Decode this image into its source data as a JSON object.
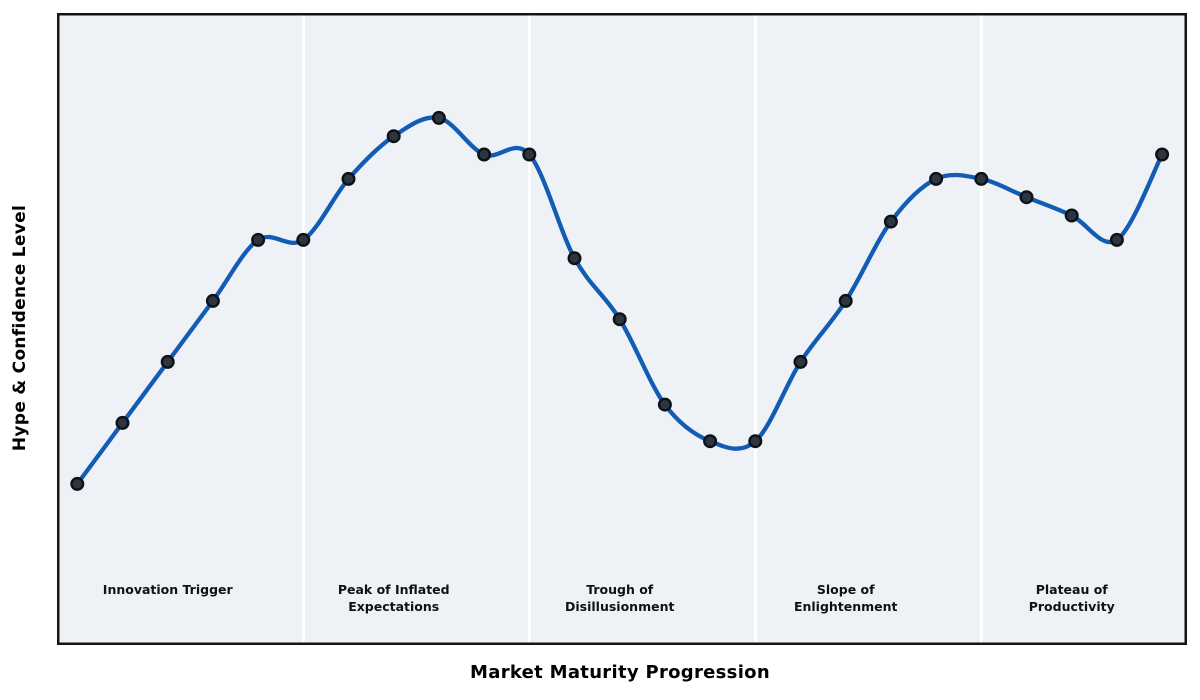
{
  "chart_data": {
    "type": "line",
    "title": "",
    "xlabel": "Market Maturity Progression",
    "ylabel": "Hype & Confidence Level",
    "x": [
      0,
      1,
      2,
      3,
      4,
      5,
      6,
      7,
      8,
      9,
      10,
      11,
      12,
      13,
      14,
      15,
      16,
      17,
      18,
      19,
      20,
      21,
      22,
      23,
      24
    ],
    "values": [
      10,
      20,
      30,
      40,
      50,
      50,
      60,
      67,
      70,
      64,
      64,
      47,
      37,
      23,
      17,
      17,
      30,
      40,
      53,
      60,
      60,
      57,
      54,
      50,
      64
    ],
    "xlim": [
      -0.45,
      24.55
    ],
    "ylim": [
      -16.4,
      87.2
    ],
    "grid": false,
    "legend_position": "none",
    "axis_ticks_visible": false,
    "smoothing": "cubic-spline",
    "marker": "circle",
    "phases": [
      {
        "label": "Innovation Trigger",
        "x_center": 2
      },
      {
        "label": "Peak of Inflated\nExpectations",
        "x_center": 7
      },
      {
        "label": "Trough of\nDisillusionment",
        "x_center": 12
      },
      {
        "label": "Slope of\nEnlightenment",
        "x_center": 17
      },
      {
        "label": "Plateau of\nProductivity",
        "x_center": 22
      }
    ],
    "phase_divider_x": [
      5,
      10,
      15,
      20
    ],
    "colors": {
      "line": "#135cb4",
      "marker_fill": "#2c3642",
      "marker_edge": "#0e1116",
      "plot_background": "#eef2f7",
      "phase_divider": "#ffffff",
      "frame": "#141414",
      "figure_background": "#ffffff",
      "text": "#000000"
    }
  }
}
